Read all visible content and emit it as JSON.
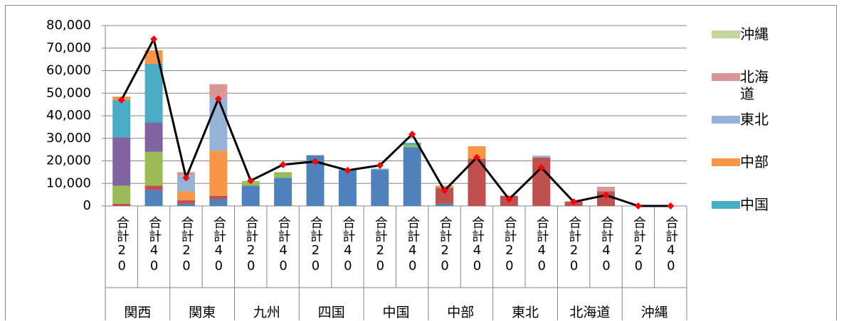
{
  "chart_data": {
    "type": "stacked-bar-line",
    "categories": [
      "合計20",
      "合計40",
      "合計20",
      "合計40",
      "合計20",
      "合計40",
      "合計20",
      "合計40",
      "合計20",
      "合計40",
      "合計20",
      "合計40",
      "合計20",
      "合計40",
      "合計20",
      "合計40",
      "合計20",
      "合計40"
    ],
    "groups": [
      "関西",
      "関東",
      "九州",
      "四国",
      "中国",
      "中部",
      "東北",
      "北海道",
      "沖縄"
    ],
    "series": [
      {
        "color": "#4f81bd",
        "values": [
          0,
          7000,
          1000,
          3000,
          9000,
          12500,
          22500,
          16000,
          16000,
          26000,
          1000,
          0,
          0,
          0,
          0,
          0,
          0,
          0
        ]
      },
      {
        "color": "#c0504d",
        "values": [
          1000,
          2000,
          1500,
          1500,
          0,
          0,
          0,
          0,
          0,
          0,
          7000,
          21000,
          4500,
          21500,
          2000,
          6500,
          0,
          0
        ]
      },
      {
        "color": "#9bbb59",
        "values": [
          8000,
          15000,
          0,
          0,
          2000,
          2500,
          0,
          0,
          0,
          1000,
          0,
          0,
          0,
          0,
          0,
          0,
          0,
          0
        ]
      },
      {
        "color": "#8064a2",
        "values": [
          21500,
          13000,
          0,
          0,
          0,
          0,
          0,
          0,
          0,
          0,
          0,
          0,
          0,
          0,
          0,
          0,
          0,
          0
        ]
      },
      {
        "name": "中国",
        "color": "#4bacc6",
        "values": [
          16500,
          26000,
          0,
          0,
          0,
          0,
          0,
          0,
          500,
          1000,
          0,
          0,
          0,
          0,
          0,
          0,
          0,
          0
        ]
      },
      {
        "name": "中部",
        "color": "#f79646",
        "values": [
          1500,
          6000,
          4000,
          20000,
          0,
          0,
          0,
          0,
          0,
          0,
          1000,
          5500,
          0,
          0,
          0,
          0,
          0,
          0
        ]
      },
      {
        "name": "東北",
        "color": "#95b3d7",
        "values": [
          0,
          0,
          7000,
          23500,
          0,
          0,
          0,
          0,
          0,
          0,
          0,
          0,
          0,
          800,
          0,
          0,
          0,
          0
        ]
      },
      {
        "name": "北海道",
        "color": "#d99694",
        "values": [
          0,
          0,
          1500,
          6000,
          0,
          0,
          0,
          0,
          0,
          0,
          0,
          0,
          0,
          0,
          0,
          2000,
          0,
          0
        ]
      },
      {
        "name": "沖縄",
        "color": "#c3d69b",
        "values": [
          0,
          0,
          0,
          0,
          0,
          0,
          0,
          0,
          0,
          0,
          0,
          0,
          0,
          0,
          0,
          0,
          0,
          0
        ]
      }
    ],
    "line": {
      "color": "#000000",
      "marker_color": "#ff0000",
      "values": [
        47000,
        74000,
        12500,
        47500,
        11200,
        18300,
        19700,
        15800,
        18000,
        31800,
        6800,
        21500,
        3000,
        17000,
        1800,
        4800,
        0,
        0
      ]
    },
    "ylim": [
      0,
      80000
    ],
    "yticks": [
      0,
      {
        "value": 10000,
        "label": "10,000"
      },
      {
        "value": 20000,
        "label": "20,000"
      },
      {
        "value": 30000,
        "label": "30,000"
      },
      {
        "value": 40000,
        "label": "40,000"
      },
      {
        "value": 50000,
        "label": "50,000"
      },
      {
        "value": 60000,
        "label": "60,000"
      },
      {
        "value": 70000,
        "label": "70,000"
      },
      {
        "value": 80000,
        "label": "80,000"
      }
    ],
    "grid": true
  }
}
